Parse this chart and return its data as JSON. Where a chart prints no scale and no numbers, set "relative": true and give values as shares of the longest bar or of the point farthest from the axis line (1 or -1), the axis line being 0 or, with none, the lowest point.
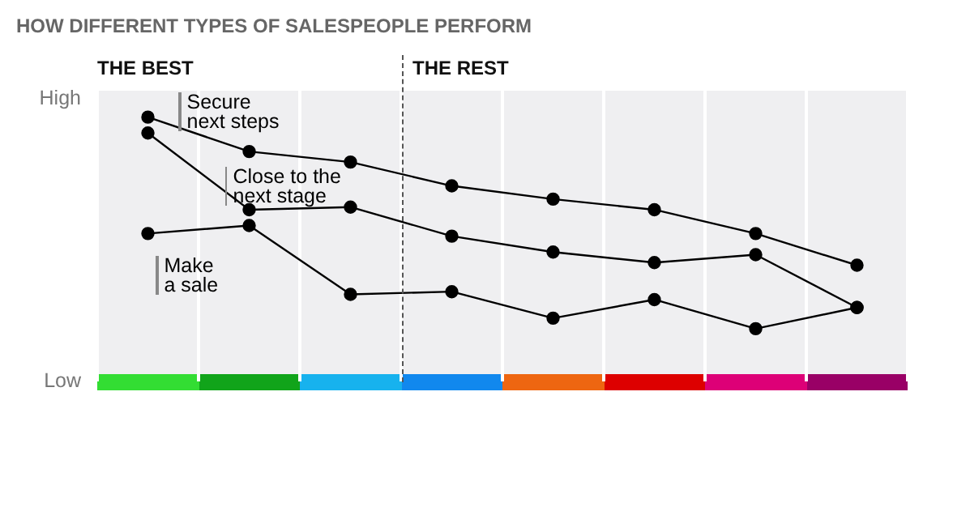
{
  "chart_data": {
    "type": "line",
    "title": "HOW DIFFERENT TYPES OF SALESPEOPLE PERFORM",
    "categories": [
      null,
      null,
      null,
      null,
      null,
      null,
      null,
      null
    ],
    "relative": true,
    "grid": "x",
    "legend": "top left",
    "marker": "circle",
    "line_style": "solid",
    "series": [
      {
        "name": "Secure next steps",
        "color": "#000000",
        "values": [
          1,
          0.87,
          0.83,
          0.74,
          0.69,
          0.65,
          0.56,
          0.44
        ]
      },
      {
        "name": "Close to the next stage",
        "color": "#000000",
        "values": [
          0.94,
          0.65,
          0.66,
          0.55,
          0.49,
          0.45,
          0.48,
          0.28
        ]
      },
      {
        "name": "Make a sale",
        "color": "#000000",
        "values": [
          0.56,
          0.59,
          0.33,
          0.34,
          0.24,
          0.31,
          0.2,
          0.28
        ]
      }
    ],
    "annotations": [
      "THE BEST",
      "THE REST",
      "High",
      "Low"
    ]
  }
}
